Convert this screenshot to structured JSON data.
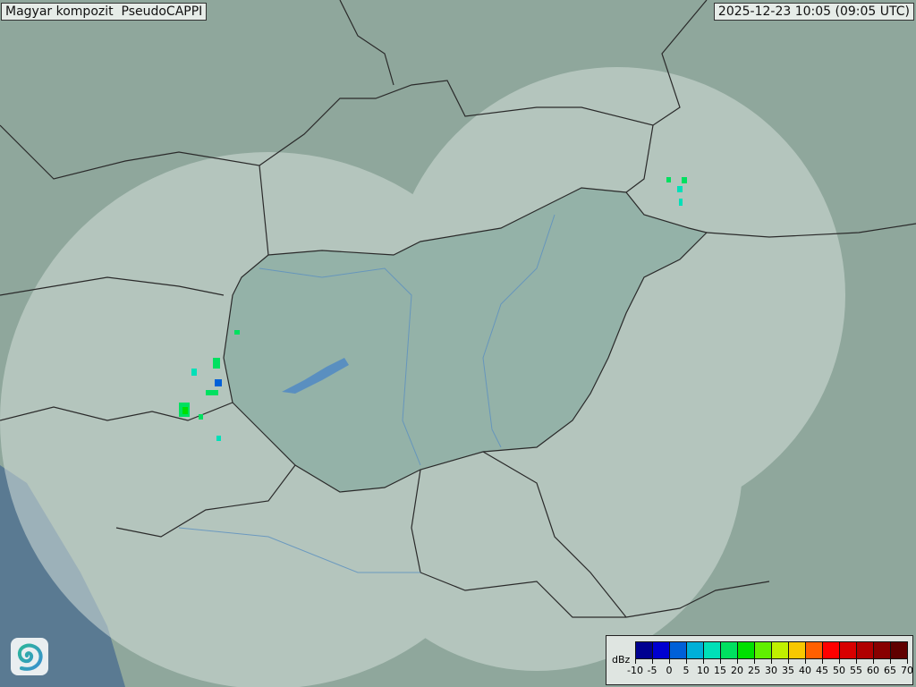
{
  "header": {
    "title": "Magyar kompozit  PseudoCAPPI",
    "timestamp": "2025-12-23 10:05 (09:05 UTC)"
  },
  "legend": {
    "unit": "dBz",
    "labels": [
      "-10",
      "-5",
      "0",
      "5",
      "10",
      "15",
      "20",
      "25",
      "30",
      "35",
      "40",
      "45",
      "50",
      "55",
      "60",
      "65",
      "70"
    ],
    "colors": [
      "#000090",
      "#0000d0",
      "#0060d8",
      "#00b0d8",
      "#00e0b8",
      "#00e060",
      "#00e000",
      "#60f000",
      "#c0f000",
      "#f8c800",
      "#ff6000",
      "#ff0000",
      "#d80000",
      "#b00000",
      "#880000",
      "#600000"
    ]
  },
  "logo": {
    "icon": "swirl-logo-icon",
    "colors": [
      "#2bb59a",
      "#3a8fd0"
    ]
  },
  "map": {
    "land_color": "#8fa79c",
    "coverage_color": "#c9d6d0",
    "hungary_color": "#7fa59a",
    "sea_color": "#5a7a92",
    "border_color": "#2a2a2a",
    "river_color": "#5a8fc0"
  }
}
